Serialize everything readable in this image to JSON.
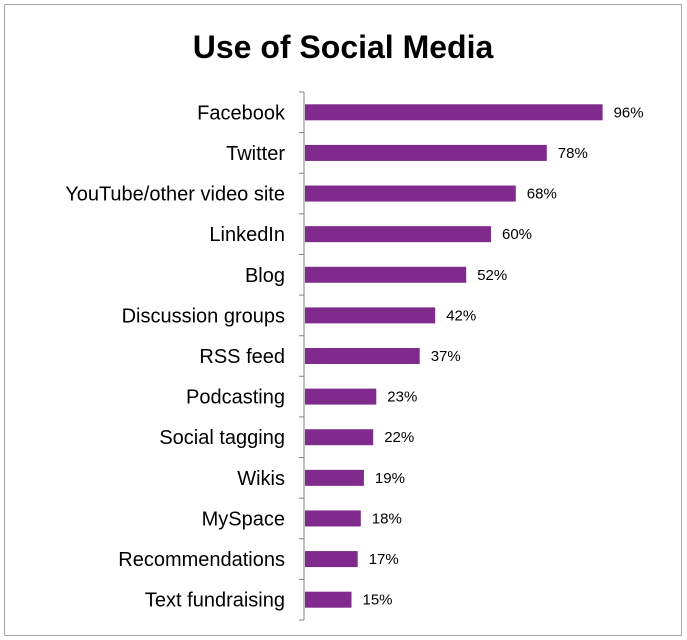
{
  "chart_data": {
    "type": "bar",
    "orientation": "horizontal",
    "title": "Use of Social Media",
    "xlabel": "",
    "ylabel": "",
    "categories": [
      "Facebook",
      "Twitter",
      "YouTube/other video site",
      "LinkedIn",
      "Blog",
      "Discussion groups",
      "RSS feed",
      "Podcasting",
      "Social tagging",
      "Wikis",
      "MySpace",
      "Recommendations",
      "Text fundraising"
    ],
    "values": [
      96,
      78,
      68,
      60,
      52,
      42,
      37,
      23,
      22,
      19,
      18,
      17,
      15
    ],
    "value_labels": [
      "96%",
      "78%",
      "68%",
      "60%",
      "52%",
      "42%",
      "37%",
      "23%",
      "22%",
      "19%",
      "18%",
      "17%",
      "15%"
    ],
    "xlim": [
      0,
      100
    ],
    "grid": false,
    "legend": "none",
    "bar_color": "#7f2a8c"
  }
}
